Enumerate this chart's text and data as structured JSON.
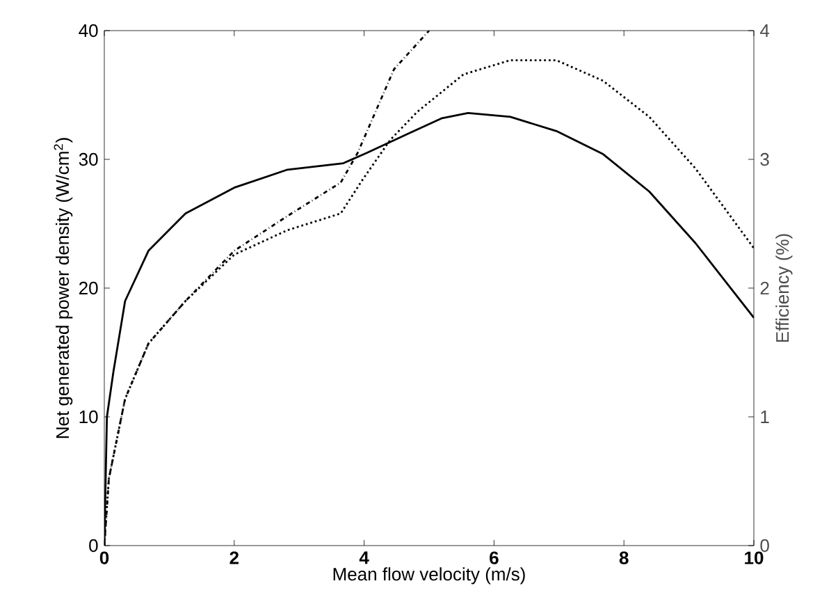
{
  "chart_data": {
    "type": "line",
    "xlabel": "Mean flow velocity (m/s)",
    "ylabel": "Net generated power density (W/cm$^{2}$)",
    "y2label": "Efficiency (%)",
    "xlim": [
      0,
      10
    ],
    "xticks": [
      0,
      2,
      4,
      6,
      8,
      10
    ],
    "ylim": [
      0,
      40
    ],
    "yticks": [
      0,
      10,
      20,
      30,
      40
    ],
    "y2lim": [
      0,
      4
    ],
    "y2ticks": [
      0,
      1,
      2,
      3,
      4
    ],
    "grid": false,
    "marker": "none",
    "series": [
      {
        "color": "#000000",
        "line_style": "solid",
        "x": [
          0,
          0.04,
          0.14,
          0.32,
          0.68,
          1.25,
          2,
          2.82,
          3.68,
          4.04,
          4.68,
          5.2,
          5.6,
          6.25,
          6.96,
          7.68,
          8.39,
          9.1,
          10
        ],
        "values": [
          0,
          10,
          13.5,
          19,
          22.9,
          25.8,
          27.8,
          29.2,
          29.7,
          30.5,
          32,
          33.2,
          33.6,
          33.3,
          32.2,
          30.4,
          27.5,
          23.5,
          17.7
        ]
      },
      {
        "color": "#000000",
        "line_style": "dashdot",
        "x": [
          0,
          0.07,
          0.32,
          0.68,
          1.25,
          2,
          2.82,
          3.64,
          3.9,
          4.46,
          5.0
        ],
        "values": [
          0,
          5.2,
          11.4,
          15.7,
          19,
          22.9,
          25.6,
          28.2,
          30.5,
          37,
          40
        ]
      },
      {
        "color": "#000000",
        "line_style": "dotted",
        "axis": "y2",
        "x": [
          0,
          0.07,
          0.32,
          0.68,
          1.25,
          2,
          2.82,
          3.64,
          3.96,
          4.4,
          4.82,
          5.53,
          6.25,
          6.96,
          7.68,
          8.39,
          9.1,
          10
        ],
        "values": [
          0,
          0.52,
          1.14,
          1.57,
          1.9,
          2.26,
          2.45,
          2.58,
          2.83,
          3.15,
          3.37,
          3.66,
          3.77,
          3.77,
          3.61,
          3.33,
          2.93,
          2.31
        ]
      }
    ]
  }
}
